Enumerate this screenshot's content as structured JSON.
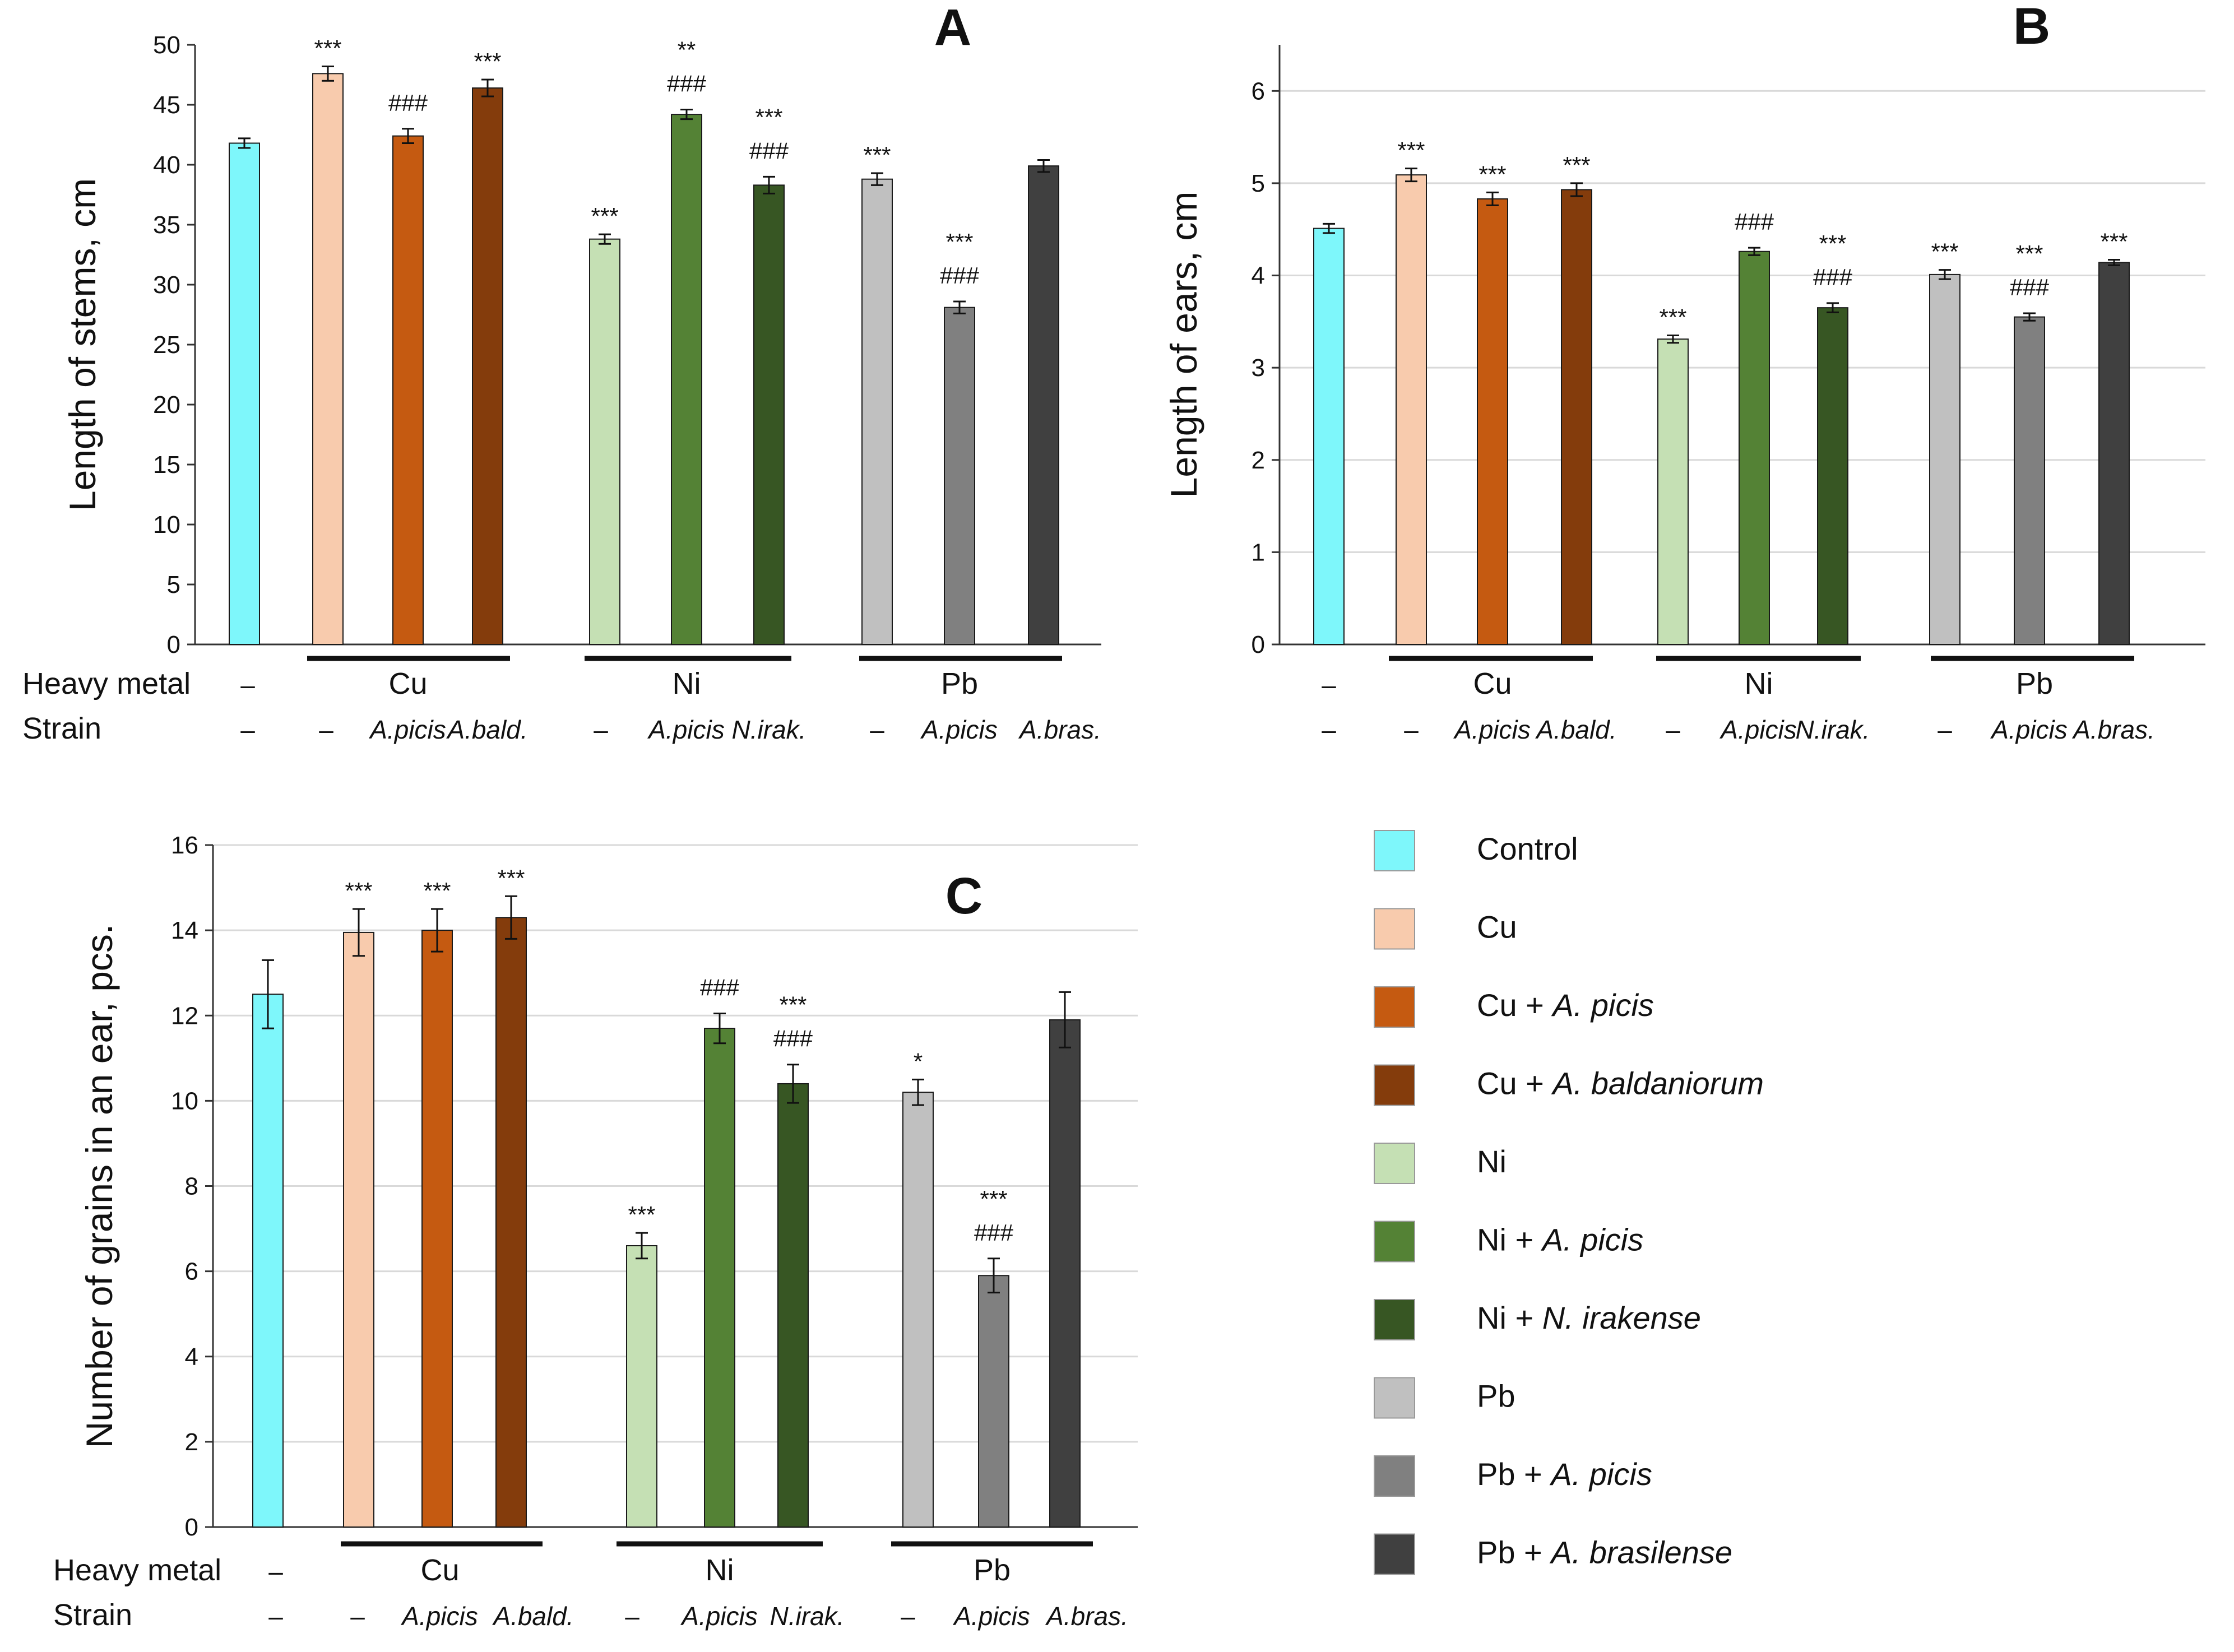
{
  "figure": {
    "heavy_metal_label": "Heavy metal",
    "strain_label": "Strain"
  },
  "legend": [
    {
      "key": "control",
      "prefix": "Control",
      "italic": "",
      "color": "#7ef7fb"
    },
    {
      "key": "cu",
      "prefix": "Cu",
      "italic": "",
      "color": "#f8cbad"
    },
    {
      "key": "cu_ap",
      "prefix": "Cu + ",
      "italic": "A. picis",
      "color": "#c55a11"
    },
    {
      "key": "cu_ab",
      "prefix": "Cu + ",
      "italic": "A. baldaniorum",
      "color": "#843c0c"
    },
    {
      "key": "ni",
      "prefix": "Ni",
      "italic": "",
      "color": "#c5e0b4"
    },
    {
      "key": "ni_ap",
      "prefix": "Ni + ",
      "italic": "A. picis",
      "color": "#548235"
    },
    {
      "key": "ni_ni",
      "prefix": "Ni + ",
      "italic": "N. irakense",
      "color": "#375623"
    },
    {
      "key": "pb",
      "prefix": "Pb",
      "italic": "",
      "color": "#c0c0c0"
    },
    {
      "key": "pb_ap",
      "prefix": "Pb + ",
      "italic": "A. picis",
      "color": "#808080"
    },
    {
      "key": "pb_ab",
      "prefix": "Pb + ",
      "italic": "A. brasilense",
      "color": "#404040"
    }
  ],
  "chart_data": [
    {
      "panel": "A",
      "type": "bar",
      "ylabel": "Length of stems, cm",
      "ylim": [
        0,
        50
      ],
      "yticks": [
        0,
        5,
        10,
        15,
        20,
        25,
        30,
        35,
        40,
        45,
        50
      ],
      "grid": false,
      "heavy_metal": [
        "–",
        "Cu",
        "Ni",
        "Pb"
      ],
      "strains": [
        "–",
        "–",
        "A.picis",
        "A.bald.",
        "–",
        "A.picis",
        "N.irak.",
        "–",
        "A.picis",
        "A.bras."
      ],
      "bars": [
        {
          "name": "Control",
          "value": 41.8,
          "error": 0.4,
          "sig": []
        },
        {
          "name": "Cu",
          "value": 47.6,
          "error": 0.6,
          "sig": [
            "***"
          ]
        },
        {
          "name": "Cu + A. picis",
          "value": 42.4,
          "error": 0.6,
          "sig": [
            "###"
          ]
        },
        {
          "name": "Cu + A. baldaniorum",
          "value": 46.4,
          "error": 0.7,
          "sig": [
            "***"
          ]
        },
        {
          "name": "Ni",
          "value": 33.8,
          "error": 0.4,
          "sig": [
            "***"
          ]
        },
        {
          "name": "Ni + A. picis",
          "value": 44.2,
          "error": 0.4,
          "sig": [
            "**",
            "###"
          ]
        },
        {
          "name": "Ni + N. irakense",
          "value": 38.3,
          "error": 0.7,
          "sig": [
            "***",
            "###"
          ]
        },
        {
          "name": "Pb",
          "value": 38.8,
          "error": 0.5,
          "sig": [
            "***"
          ]
        },
        {
          "name": "Pb + A. picis",
          "value": 28.1,
          "error": 0.5,
          "sig": [
            "***",
            "###"
          ]
        },
        {
          "name": "Pb + A. brasilense",
          "value": 39.9,
          "error": 0.5,
          "sig": []
        }
      ]
    },
    {
      "panel": "B",
      "type": "bar",
      "ylabel": "Length of ears, cm",
      "ylim": [
        0,
        6.5
      ],
      "yticks": [
        0,
        1,
        2,
        3,
        4,
        5,
        6
      ],
      "grid": true,
      "heavy_metal": [
        "–",
        "Cu",
        "Ni",
        "Pb"
      ],
      "strains": [
        "–",
        "–",
        "A.picis",
        "A.bald.",
        "–",
        "A.picis",
        "N.irak.",
        "–",
        "A.picis",
        "A.bras."
      ],
      "bars": [
        {
          "name": "Control",
          "value": 4.51,
          "error": 0.05,
          "sig": []
        },
        {
          "name": "Cu",
          "value": 5.09,
          "error": 0.07,
          "sig": [
            "***"
          ]
        },
        {
          "name": "Cu + A. picis",
          "value": 4.83,
          "error": 0.07,
          "sig": [
            "***"
          ]
        },
        {
          "name": "Cu + A. baldaniorum",
          "value": 4.93,
          "error": 0.07,
          "sig": [
            "***"
          ]
        },
        {
          "name": "Ni",
          "value": 3.31,
          "error": 0.04,
          "sig": [
            "***"
          ]
        },
        {
          "name": "Ni + A. picis",
          "value": 4.26,
          "error": 0.04,
          "sig": [
            "###"
          ]
        },
        {
          "name": "Ni + N. irakense",
          "value": 3.65,
          "error": 0.05,
          "sig": [
            "***",
            "###"
          ]
        },
        {
          "name": "Pb",
          "value": 4.01,
          "error": 0.05,
          "sig": [
            "***"
          ]
        },
        {
          "name": "Pb + A. picis",
          "value": 3.55,
          "error": 0.04,
          "sig": [
            "***",
            "###"
          ]
        },
        {
          "name": "Pb + A. brasilense",
          "value": 4.14,
          "error": 0.03,
          "sig": [
            "***"
          ]
        }
      ]
    },
    {
      "panel": "C",
      "type": "bar",
      "ylabel": "Number of grains in an ear, pcs.",
      "ylim": [
        0,
        16
      ],
      "yticks": [
        0,
        2,
        4,
        6,
        8,
        10,
        12,
        14,
        16
      ],
      "grid": true,
      "heavy_metal": [
        "–",
        "Cu",
        "Ni",
        "Pb"
      ],
      "strains": [
        "–",
        "–",
        "A.picis",
        "A.bald.",
        "–",
        "A.picis",
        "N.irak.",
        "–",
        "A.picis",
        "A.bras."
      ],
      "bars": [
        {
          "name": "Control",
          "value": 12.5,
          "error": 0.8,
          "sig": []
        },
        {
          "name": "Cu",
          "value": 13.95,
          "error": 0.55,
          "sig": [
            "***"
          ]
        },
        {
          "name": "Cu + A. picis",
          "value": 14.0,
          "error": 0.5,
          "sig": [
            "***"
          ]
        },
        {
          "name": "Cu + A. baldaniorum",
          "value": 14.3,
          "error": 0.5,
          "sig": [
            "***"
          ]
        },
        {
          "name": "Ni",
          "value": 6.6,
          "error": 0.3,
          "sig": [
            "***"
          ]
        },
        {
          "name": "Ni + A. picis",
          "value": 11.7,
          "error": 0.35,
          "sig": [
            "###"
          ]
        },
        {
          "name": "Ni + N. irakense",
          "value": 10.4,
          "error": 0.45,
          "sig": [
            "***",
            "###"
          ]
        },
        {
          "name": "Pb",
          "value": 10.2,
          "error": 0.3,
          "sig": [
            "*"
          ]
        },
        {
          "name": "Pb + A. picis",
          "value": 5.9,
          "error": 0.4,
          "sig": [
            "***",
            "###"
          ]
        },
        {
          "name": "Pb + A. brasilense",
          "value": 11.9,
          "error": 0.65,
          "sig": []
        }
      ]
    }
  ]
}
